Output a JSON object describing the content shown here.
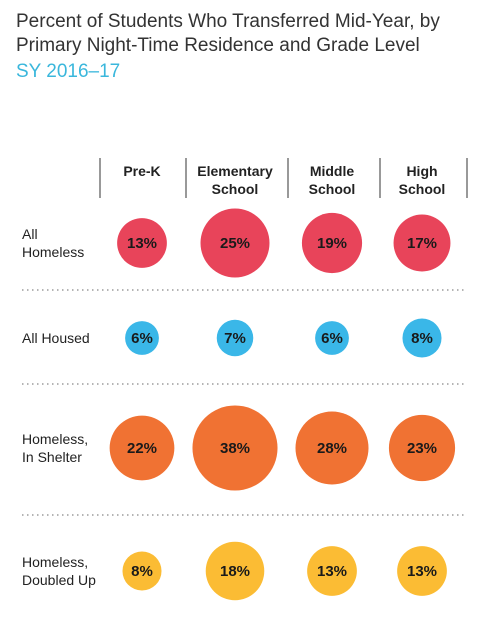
{
  "title": "Percent of Students Who Transferred Mid-Year, by Primary Night-Time Residence and Grade Level",
  "subtitle": "SY 2016–17",
  "chart_data": {
    "type": "bubble-matrix",
    "title": "Percent of Students Who Transferred Mid-Year, by Primary Night-Time Residence and Grade Level",
    "subtitle": "SY 2016–17",
    "columns": [
      [
        "Pre-K"
      ],
      [
        "Elementary",
        "School"
      ],
      [
        "Middle",
        "School"
      ],
      [
        "High",
        "School"
      ]
    ],
    "rows": [
      {
        "label": [
          "All",
          "Homeless"
        ],
        "color": "#e8445a",
        "values": [
          13,
          25,
          19,
          17
        ]
      },
      {
        "label": [
          "All Housed"
        ],
        "color": "#3ab7e8",
        "values": [
          6,
          7,
          6,
          8
        ]
      },
      {
        "label": [
          "Homeless,",
          "In Shelter"
        ],
        "color": "#f07233",
        "values": [
          22,
          38,
          28,
          23
        ]
      },
      {
        "label": [
          "Homeless,",
          "Doubled Up"
        ],
        "color": "#fbbc34",
        "values": [
          8,
          18,
          13,
          13
        ]
      }
    ],
    "value_suffix": "%",
    "grid": "dotted row separators, vertical column separators"
  }
}
